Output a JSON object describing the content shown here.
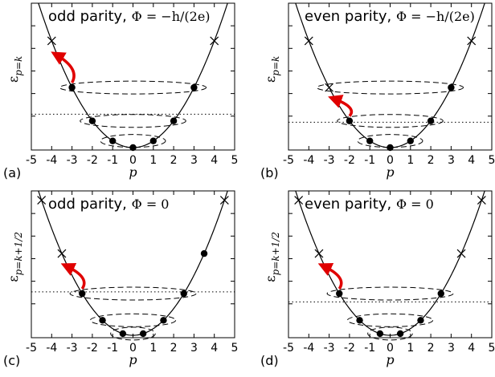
{
  "x_tick_labels": [
    "-5",
    "-4",
    "-3",
    "-2",
    "-1",
    "0",
    "1",
    "2",
    "3",
    "4",
    "5"
  ],
  "x_axis_label": "p",
  "panels": [
    {
      "id": "a",
      "label": "(a)",
      "title_text": "odd parity, ",
      "title_math": "Φ = −h/(2e)",
      "y_axis_label": "ε p=k",
      "x_offset": 0,
      "filled_points": [
        -3,
        -2,
        -1,
        0,
        1,
        2,
        3
      ],
      "cross_points": [
        -4,
        4
      ],
      "level": 2.5,
      "arrow_from": -3,
      "arrow_to": -3.8
    },
    {
      "id": "b",
      "label": "(b)",
      "title_text": "even parity, ",
      "title_math": "Φ = −h/(2e)",
      "y_axis_label": "ε p=k",
      "x_offset": 0,
      "filled_points": [
        -2,
        -1,
        0,
        1,
        2,
        3
      ],
      "cross_points": [
        -3,
        -4,
        4
      ],
      "level": 1.9,
      "arrow_from": -2,
      "arrow_to": -2.8
    },
    {
      "id": "c",
      "label": "(c)",
      "title_text": "odd parity, ",
      "title_math": "Φ = 0",
      "y_axis_label": "ε p=k+1/2",
      "x_offset": 0.5,
      "filled_points": [
        -2.5,
        -1.5,
        -0.5,
        0.5,
        1.5,
        2.5,
        3.5
      ],
      "cross_points": [
        -3.5,
        -4.5,
        4.5
      ],
      "level": 3.25,
      "arrow_from": -2.5,
      "arrow_to": -3.3
    },
    {
      "id": "d",
      "label": "(d)",
      "title_text": "even parity, ",
      "title_math": "Φ = 0",
      "y_axis_label": "ε p=k+1/2",
      "x_offset": 0.5,
      "filled_points": [
        -2.5,
        -1.5,
        -0.5,
        0.5,
        1.5,
        2.5
      ],
      "cross_points": [
        -3.5,
        -4.5,
        3.5,
        4.5
      ],
      "level": 2.5,
      "arrow_from": -2.5,
      "arrow_to": -3.3
    }
  ]
}
